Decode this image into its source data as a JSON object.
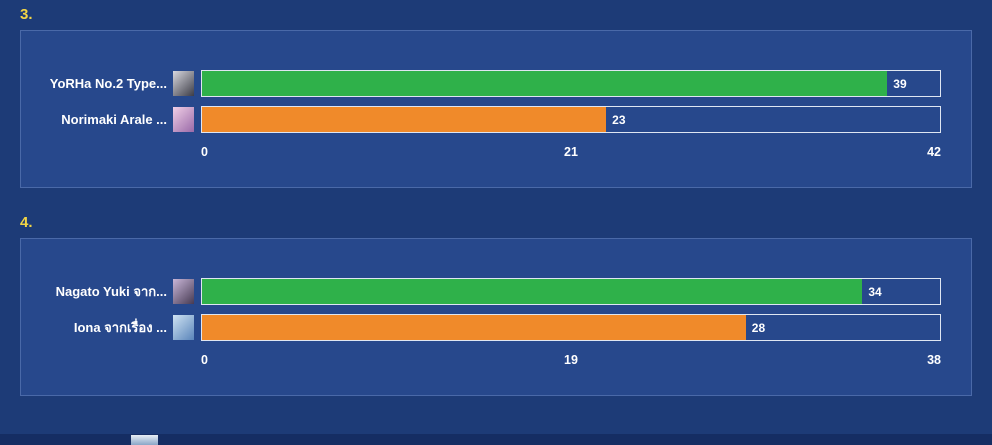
{
  "page": {
    "background": "#1d3b77",
    "panel_background": "#27488c",
    "accent_number_color": "#f2d545"
  },
  "chart_data": [
    {
      "type": "bar",
      "orientation": "horizontal",
      "title": "3.",
      "categories": [
        "YoRHa No.2 Type...",
        "Norimaki Arale ..."
      ],
      "values": [
        39,
        23
      ],
      "value_labels": [
        "39",
        "23"
      ],
      "bar_colors": [
        "#2fb14a",
        "#f08a2a"
      ],
      "xlim": [
        0,
        42
      ],
      "ticks": [
        "0",
        "21",
        "42"
      ],
      "grid": "off",
      "legend": "none",
      "avatar_names": [
        "yorha-2b-avatar",
        "norimaki-arale-avatar"
      ],
      "avatar_colors": [
        [
          "#d8d8df",
          "#3c3c46"
        ],
        [
          "#f0cfe6",
          "#9a6aa8"
        ]
      ]
    },
    {
      "type": "bar",
      "orientation": "horizontal",
      "title": "4.",
      "categories": [
        "Nagato Yuki จาก...",
        "Iona จากเรื่อง ..."
      ],
      "values": [
        34,
        28
      ],
      "value_labels": [
        "34",
        "28"
      ],
      "bar_colors": [
        "#2fb14a",
        "#f08a2a"
      ],
      "xlim": [
        0,
        38
      ],
      "ticks": [
        "0",
        "19",
        "38"
      ],
      "grid": "off",
      "legend": "none",
      "avatar_names": [
        "nagato-yuki-avatar",
        "iona-avatar"
      ],
      "avatar_colors": [
        [
          "#c9b6d8",
          "#463a52"
        ],
        [
          "#cfe2f2",
          "#5a85ba"
        ]
      ]
    }
  ]
}
